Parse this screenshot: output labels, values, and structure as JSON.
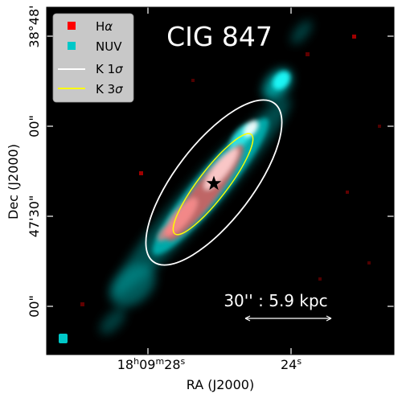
{
  "figure": {
    "title": "CIG 847",
    "xlabel": "RA (J2000)",
    "ylabel": "Dec (J2000)",
    "scale_bar_label": "30'' : 5.9 kpc",
    "x_ticks": [
      {
        "main": "18",
        "h": "h",
        "m_val": "09",
        "m": "m",
        "s_val": "28",
        "s": "s"
      },
      {
        "main": "24",
        "s": "s"
      }
    ],
    "y_ticks": [
      "38°48'",
      "00\"",
      "47'30\"",
      "00\""
    ],
    "legend": [
      {
        "label_main": "H",
        "label_greek": "α",
        "marker": "square",
        "color": "#ff0000"
      },
      {
        "label_main": "NUV",
        "label_greek": "",
        "marker": "square",
        "color": "#00c8c8"
      },
      {
        "label_main": "K 1",
        "label_greek": "σ",
        "marker": "line",
        "color": "#ffffff"
      },
      {
        "label_main": "K 3",
        "label_greek": "σ",
        "marker": "line",
        "color": "#ffff00"
      }
    ],
    "colors": {
      "background": "#000000",
      "halpha": "#ff3030",
      "nuv": "#00c8c8",
      "k1sigma": "#ffffff",
      "k3sigma": "#ffff00",
      "beam": "#00c8c8"
    }
  }
}
